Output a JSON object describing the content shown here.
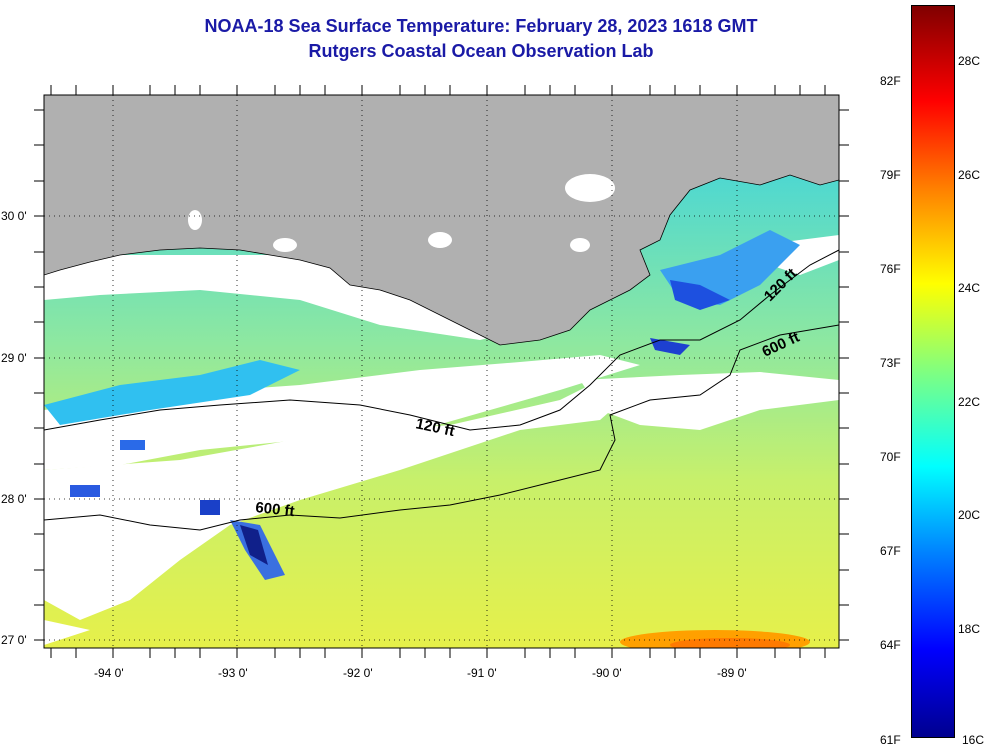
{
  "title": {
    "line1": "NOAA-18 Sea Surface Temperature:  February 28, 2023 1618 GMT",
    "line2": "Rutgers Coastal Ocean Observation Lab"
  },
  "map": {
    "region": "Northern Gulf of Mexico (Louisiana shelf)",
    "lon_labels": [
      "-94 0'",
      "-93 0'",
      "-92 0'",
      "-91 0'",
      "-90 0'",
      "-89 0'"
    ],
    "lat_labels": [
      "30 0'",
      "29 0'",
      "28 0'",
      "27 0'"
    ],
    "land_color": "#b0b0b0",
    "cloud_color": "#ffffff",
    "contours": [
      {
        "label": "120 ft",
        "depth_ft": 120
      },
      {
        "label": "600 ft",
        "depth_ft": 600
      }
    ],
    "contour_labels": {
      "west_120": "120 ft",
      "west_600": "600 ft",
      "east_120": "120 ft",
      "east_600": "600 ft"
    }
  },
  "colorbar": {
    "fahrenheit": [
      "82F",
      "79F",
      "76F",
      "73F",
      "70F",
      "67F",
      "64F",
      "61F"
    ],
    "celsius": [
      "28C",
      "26C",
      "24C",
      "22C",
      "20C",
      "18C",
      "16C"
    ],
    "colors": [
      "#00008f",
      "#0000ff",
      "#0080ff",
      "#00ffff",
      "#80ff80",
      "#ffff00",
      "#ff8000",
      "#ff0000",
      "#800000"
    ]
  }
}
